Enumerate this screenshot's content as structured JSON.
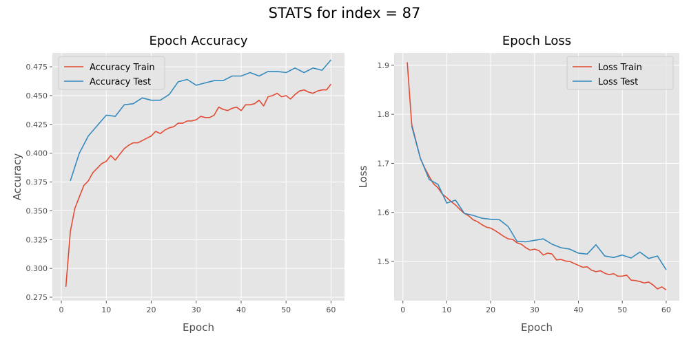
{
  "figure_title": "STATS for index = 87",
  "colors": {
    "train": "#E24A33",
    "test": "#348ABD",
    "panel_bg": "#E5E5E5",
    "grid": "#FFFFFF"
  },
  "chart_data": [
    {
      "type": "line",
      "title": "Epoch Accuracy",
      "xlabel": "Epoch",
      "ylabel": "Accuracy",
      "xlim": [
        -2,
        63
      ],
      "ylim": [
        0.272,
        0.487
      ],
      "xticks": [
        "0",
        "10",
        "20",
        "30",
        "40",
        "50",
        "60"
      ],
      "yticks": [
        "0.275",
        "0.300",
        "0.325",
        "0.350",
        "0.375",
        "0.400",
        "0.425",
        "0.450",
        "0.475"
      ],
      "grid": true,
      "legend_position": "upper left",
      "series": [
        {
          "name": "Accuracy Train",
          "x": [
            1,
            2,
            3,
            4,
            5,
            6,
            7,
            8,
            9,
            10,
            11,
            12,
            13,
            14,
            15,
            16,
            17,
            18,
            19,
            20,
            21,
            22,
            23,
            24,
            25,
            26,
            27,
            28,
            29,
            30,
            31,
            32,
            33,
            34,
            35,
            36,
            37,
            38,
            39,
            40,
            41,
            42,
            43,
            44,
            45,
            46,
            47,
            48,
            49,
            50,
            51,
            52,
            53,
            54,
            55,
            56,
            57,
            58,
            59,
            60
          ],
          "y": [
            0.284,
            0.332,
            0.352,
            0.362,
            0.372,
            0.376,
            0.383,
            0.387,
            0.391,
            0.393,
            0.398,
            0.394,
            0.399,
            0.404,
            0.407,
            0.409,
            0.409,
            0.411,
            0.413,
            0.415,
            0.419,
            0.417,
            0.42,
            0.422,
            0.423,
            0.426,
            0.426,
            0.428,
            0.428,
            0.429,
            0.432,
            0.431,
            0.431,
            0.433,
            0.44,
            0.438,
            0.437,
            0.439,
            0.44,
            0.437,
            0.442,
            0.442,
            0.443,
            0.446,
            0.441,
            0.449,
            0.45,
            0.452,
            0.449,
            0.45,
            0.447,
            0.451,
            0.454,
            0.455,
            0.453,
            0.452,
            0.454,
            0.455,
            0.455,
            0.46
          ]
        },
        {
          "name": "Accuracy Test",
          "x": [
            2,
            4,
            6,
            8,
            10,
            12,
            14,
            16,
            18,
            20,
            22,
            24,
            26,
            28,
            30,
            32,
            34,
            36,
            38,
            40,
            42,
            44,
            46,
            48,
            50,
            52,
            54,
            56,
            58,
            60
          ],
          "y": [
            0.376,
            0.4,
            0.415,
            0.424,
            0.433,
            0.432,
            0.442,
            0.443,
            0.448,
            0.446,
            0.446,
            0.451,
            0.462,
            0.464,
            0.459,
            0.461,
            0.463,
            0.463,
            0.467,
            0.467,
            0.47,
            0.467,
            0.471,
            0.471,
            0.47,
            0.474,
            0.47,
            0.474,
            0.472,
            0.481
          ]
        }
      ]
    },
    {
      "type": "line",
      "title": "Epoch Loss",
      "xlabel": "Epoch",
      "ylabel": "Loss",
      "xlim": [
        -2,
        63
      ],
      "ylim": [
        1.42,
        1.925
      ],
      "xticks": [
        "0",
        "10",
        "20",
        "30",
        "40",
        "50",
        "60"
      ],
      "yticks": [
        "1.5",
        "1.6",
        "1.7",
        "1.8",
        "1.9"
      ],
      "grid": true,
      "legend_position": "upper right",
      "series": [
        {
          "name": "Loss Train",
          "x": [
            1,
            2,
            3,
            4,
            5,
            6,
            7,
            8,
            9,
            10,
            11,
            12,
            13,
            14,
            15,
            16,
            17,
            18,
            19,
            20,
            21,
            22,
            23,
            24,
            25,
            26,
            27,
            28,
            29,
            30,
            31,
            32,
            33,
            34,
            35,
            36,
            37,
            38,
            39,
            40,
            41,
            42,
            43,
            44,
            45,
            46,
            47,
            48,
            49,
            50,
            51,
            52,
            53,
            54,
            55,
            56,
            57,
            58,
            59,
            60
          ],
          "y": [
            1.906,
            1.78,
            1.745,
            1.71,
            1.69,
            1.673,
            1.658,
            1.65,
            1.637,
            1.63,
            1.622,
            1.615,
            1.606,
            1.598,
            1.593,
            1.585,
            1.581,
            1.575,
            1.57,
            1.568,
            1.563,
            1.557,
            1.551,
            1.546,
            1.545,
            1.538,
            1.535,
            1.528,
            1.523,
            1.525,
            1.522,
            1.513,
            1.517,
            1.515,
            1.503,
            1.504,
            1.501,
            1.5,
            1.496,
            1.492,
            1.488,
            1.489,
            1.482,
            1.479,
            1.481,
            1.476,
            1.473,
            1.475,
            1.47,
            1.47,
            1.472,
            1.462,
            1.461,
            1.459,
            1.456,
            1.458,
            1.452,
            1.444,
            1.448,
            1.442
          ]
        },
        {
          "name": "Loss Test",
          "x": [
            2,
            4,
            6,
            8,
            10,
            12,
            14,
            16,
            18,
            20,
            22,
            24,
            26,
            28,
            30,
            32,
            34,
            36,
            38,
            40,
            42,
            44,
            46,
            48,
            50,
            52,
            54,
            56,
            58,
            60
          ],
          "y": [
            1.776,
            1.71,
            1.667,
            1.657,
            1.619,
            1.625,
            1.598,
            1.594,
            1.588,
            1.586,
            1.585,
            1.571,
            1.541,
            1.54,
            1.543,
            1.546,
            1.535,
            1.528,
            1.525,
            1.517,
            1.515,
            1.534,
            1.511,
            1.508,
            1.513,
            1.507,
            1.519,
            1.506,
            1.511,
            1.483
          ]
        }
      ]
    }
  ]
}
